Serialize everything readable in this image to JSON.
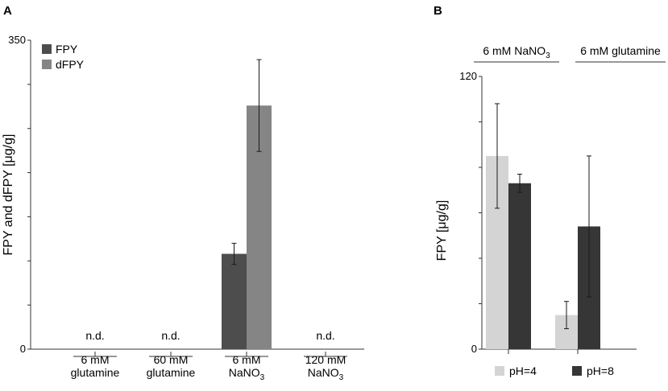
{
  "chart_data": [
    {
      "panel": "A",
      "type": "bar",
      "ylabel": "FPY and dFPY [μg/g]",
      "ylim": [
        0,
        350
      ],
      "yticks": [
        0,
        350
      ],
      "minor_tick_step": 50,
      "categories": [
        {
          "line1": "6 mM",
          "line2": "glutamine",
          "line2_sub": ""
        },
        {
          "line1": "60 mM",
          "line2": "glutamine",
          "line2_sub": ""
        },
        {
          "line1": "6 mM",
          "line2": "NaNO",
          "line2_sub": "3"
        },
        {
          "line1": "120 mM",
          "line2": "NaNO",
          "line2_sub": "3"
        }
      ],
      "na_label": "n.d.",
      "series": [
        {
          "name": "FPY",
          "color": "#4d4d4d",
          "values": [
            null,
            null,
            108,
            null
          ],
          "errors": [
            null,
            null,
            12,
            null
          ]
        },
        {
          "name": "dFPY",
          "color": "#858585",
          "values": [
            null,
            null,
            276,
            null
          ],
          "errors": [
            null,
            null,
            52,
            null
          ]
        }
      ],
      "legend": "top-left"
    },
    {
      "panel": "B",
      "type": "bar",
      "ylabel": "FPY  [μg/g]",
      "ylim": [
        0,
        120
      ],
      "yticks": [
        0,
        120
      ],
      "minor_tick_step": 20,
      "groups": [
        {
          "label": "6 mM NaNO",
          "label_sub": "3"
        },
        {
          "label": "6 mM glutamine",
          "label_sub": ""
        }
      ],
      "series": [
        {
          "name": "pH=4",
          "color": "#d4d4d4",
          "values": [
            85,
            15
          ],
          "errors": [
            23,
            6
          ]
        },
        {
          "name": "pH=8",
          "color": "#363636",
          "values": [
            73,
            54
          ],
          "errors": [
            4,
            31
          ]
        }
      ],
      "legend": "bottom"
    }
  ]
}
